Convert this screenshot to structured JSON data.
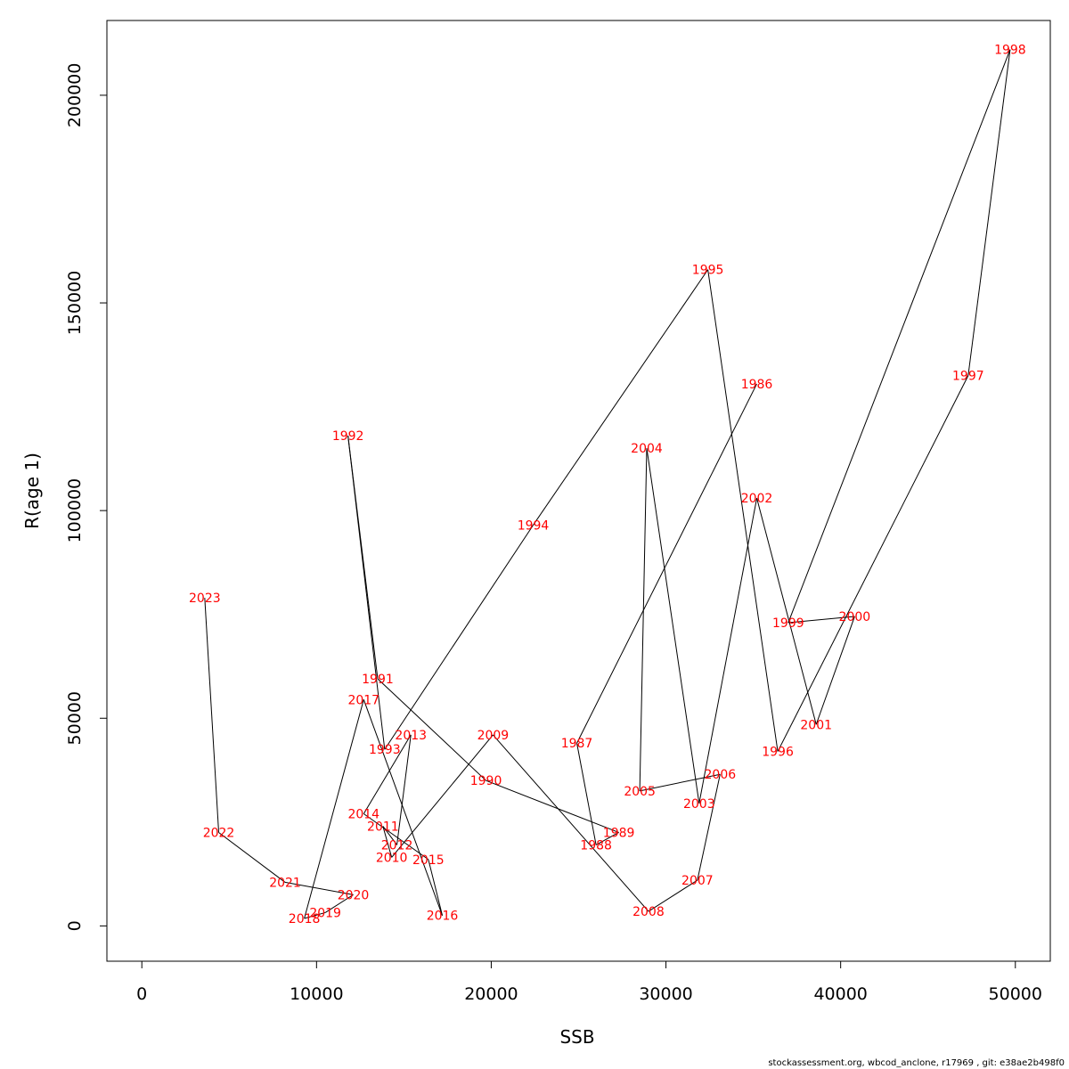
{
  "chart_data": {
    "type": "line",
    "xlabel": "SSB",
    "ylabel": "R(age 1)",
    "xlim": [
      -2000,
      52000
    ],
    "ylim": [
      -8500,
      218000
    ],
    "x_ticks": [
      0,
      10000,
      20000,
      30000,
      40000,
      50000
    ],
    "x_tick_labels": [
      "0",
      "10000",
      "20000",
      "30000",
      "40000",
      "50000"
    ],
    "y_ticks": [
      0,
      50000,
      100000,
      150000,
      200000
    ],
    "y_tick_labels": [
      "0",
      "50000",
      "100000",
      "150000",
      "200000"
    ],
    "grid": false,
    "line_color": "#000000",
    "label_color": "#ff0000",
    "points": [
      {
        "label": "1986",
        "x": 35200,
        "y": 130500
      },
      {
        "label": "1987",
        "x": 24900,
        "y": 44000
      },
      {
        "label": "1988",
        "x": 26000,
        "y": 19500
      },
      {
        "label": "1989",
        "x": 27300,
        "y": 22500
      },
      {
        "label": "1990",
        "x": 19700,
        "y": 35000
      },
      {
        "label": "1991",
        "x": 13500,
        "y": 59500
      },
      {
        "label": "1992",
        "x": 11800,
        "y": 118000
      },
      {
        "label": "1993",
        "x": 13900,
        "y": 42500
      },
      {
        "label": "1994",
        "x": 22400,
        "y": 96500
      },
      {
        "label": "1995",
        "x": 32400,
        "y": 158000
      },
      {
        "label": "1996",
        "x": 36400,
        "y": 42000
      },
      {
        "label": "1997",
        "x": 47300,
        "y": 132500
      },
      {
        "label": "1998",
        "x": 49700,
        "y": 211000
      },
      {
        "label": "1999",
        "x": 37000,
        "y": 73000
      },
      {
        "label": "2000",
        "x": 40800,
        "y": 74500
      },
      {
        "label": "2001",
        "x": 38600,
        "y": 48500
      },
      {
        "label": "2002",
        "x": 35200,
        "y": 103000
      },
      {
        "label": "2003",
        "x": 31900,
        "y": 29500
      },
      {
        "label": "2004",
        "x": 28900,
        "y": 115000
      },
      {
        "label": "2005",
        "x": 28500,
        "y": 32500
      },
      {
        "label": "2006",
        "x": 33100,
        "y": 36500
      },
      {
        "label": "2007",
        "x": 31800,
        "y": 11000
      },
      {
        "label": "2008",
        "x": 29000,
        "y": 3500
      },
      {
        "label": "2009",
        "x": 20100,
        "y": 46000
      },
      {
        "label": "2010",
        "x": 14300,
        "y": 16500
      },
      {
        "label": "2011",
        "x": 13800,
        "y": 24000
      },
      {
        "label": "2012",
        "x": 14600,
        "y": 19500
      },
      {
        "label": "2013",
        "x": 15400,
        "y": 46000
      },
      {
        "label": "2014",
        "x": 12700,
        "y": 27000
      },
      {
        "label": "2015",
        "x": 16400,
        "y": 16000
      },
      {
        "label": "2016",
        "x": 17200,
        "y": 2500
      },
      {
        "label": "2017",
        "x": 12700,
        "y": 54500
      },
      {
        "label": "2018",
        "x": 9300,
        "y": 1800
      },
      {
        "label": "2019",
        "x": 10500,
        "y": 3200
      },
      {
        "label": "2020",
        "x": 12100,
        "y": 7500
      },
      {
        "label": "2021",
        "x": 8200,
        "y": 10500
      },
      {
        "label": "2022",
        "x": 4400,
        "y": 22500
      },
      {
        "label": "2023",
        "x": 3600,
        "y": 79000
      }
    ]
  },
  "footer": {
    "text": "stockassessment.org, wbcod_anclone, r17969 , git: e38ae2b498f0"
  }
}
